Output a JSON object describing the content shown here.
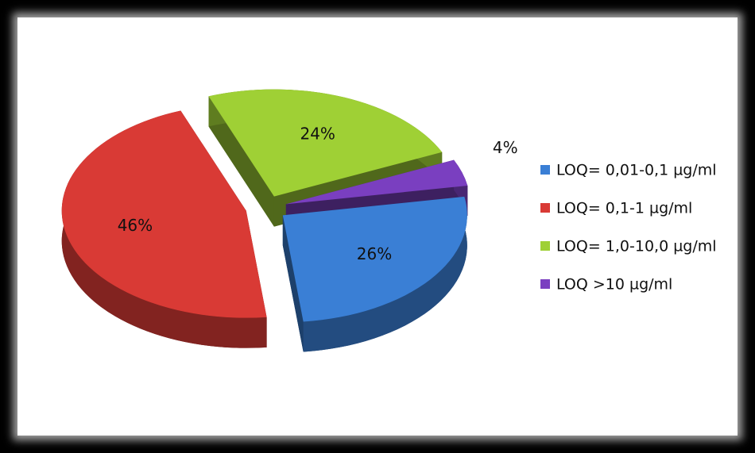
{
  "chart_data": {
    "type": "pie",
    "categories": [
      "LOQ= 0,01-0,1 µg/ml",
      "LOQ= 0,1-1 µg/ml",
      "LOQ= 1,0-10,0 µg/ml",
      "LOQ >10 µg/ml"
    ],
    "values": [
      26,
      46,
      24,
      4
    ],
    "value_labels": [
      "26%",
      "46%",
      "24%",
      "4%"
    ],
    "colors": [
      "#3a7fd5",
      "#d93a35",
      "#9fd035",
      "#7a3fc0"
    ],
    "legend": "right"
  }
}
